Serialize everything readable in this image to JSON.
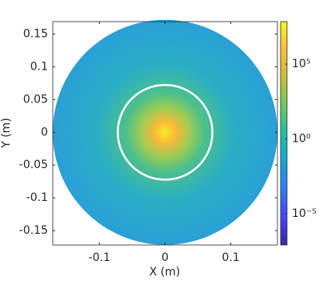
{
  "chart_data": {
    "type": "heatmap",
    "xlabel": "X (m)",
    "ylabel": "Y (m)",
    "xlim": [
      -0.171,
      0.171
    ],
    "ylim": [
      -0.172,
      0.169
    ],
    "xticks": [
      -0.1,
      0,
      0.1
    ],
    "yticks": [
      -0.15,
      -0.1,
      -0.05,
      0,
      0.05,
      0.1,
      0.15
    ],
    "disc_radius": 0.171,
    "circle_radius": 0.072,
    "colorbar": {
      "log": true,
      "clim": [
        8e-08,
        70000000.0
      ],
      "ticks": [
        {
          "value": 1e-05,
          "label": "10⁻⁵"
        },
        {
          "value": 1,
          "label": "10⁰"
        },
        {
          "value": 100000,
          "label": "10⁵"
        }
      ],
      "colormap": [
        "#3e26a8",
        "#4743f8",
        "#2f7ff5",
        "#16a3d7",
        "#1ebea5",
        "#6ccb5f",
        "#c9bf3a",
        "#fdbd3c",
        "#f9fb15"
      ]
    },
    "field_colors": [
      "#fde725",
      "#f7b93a",
      "#9ccc55",
      "#4dc08a",
      "#2aafc4",
      "#2a9fd6"
    ],
    "circle_color": "#ffffff"
  }
}
